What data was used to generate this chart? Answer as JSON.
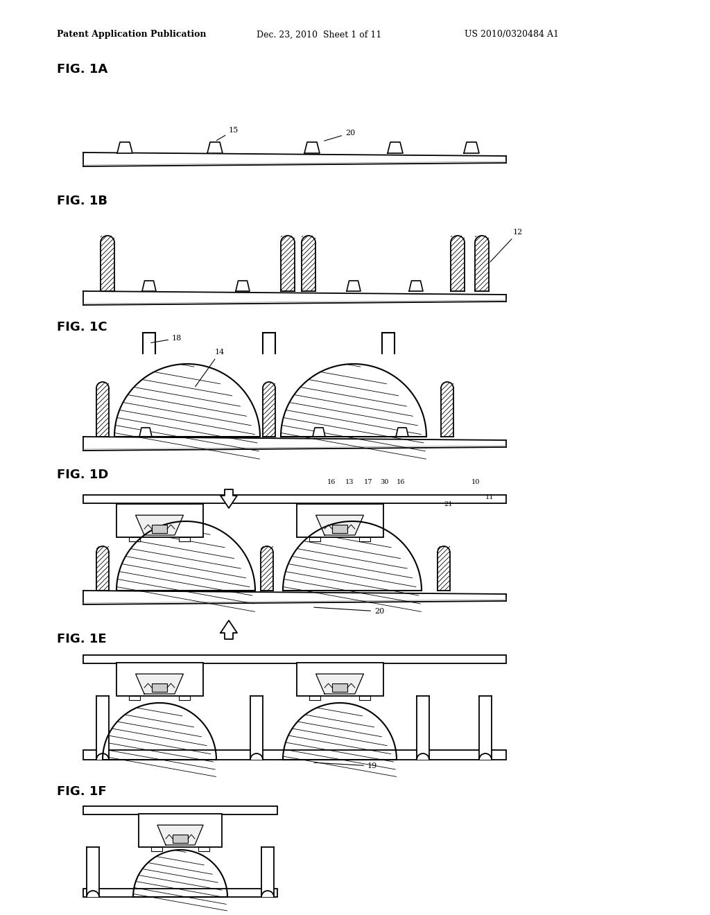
{
  "bg_color": "#ffffff",
  "header_left": "Patent Application Publication",
  "header_mid": "Dec. 23, 2010  Sheet 1 of 11",
  "header_right": "US 2010/0320484 A1",
  "label_fontsize": 13,
  "header_fontsize": 9,
  "annot_fontsize": 8
}
